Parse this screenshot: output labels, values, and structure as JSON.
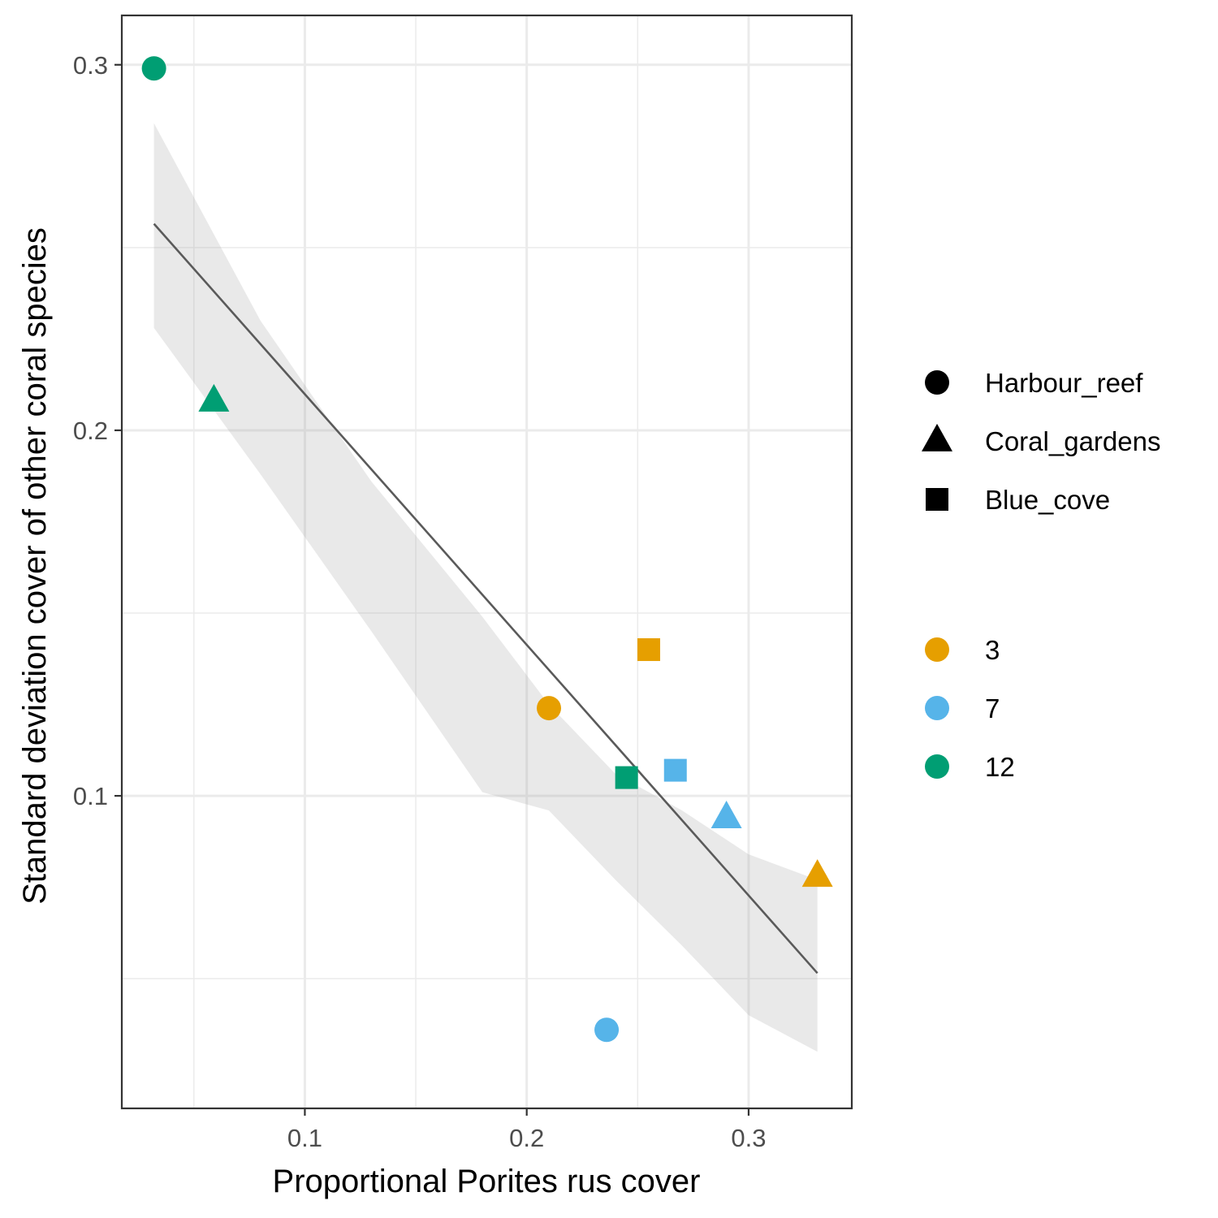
{
  "chart_data": {
    "type": "scatter",
    "title": "",
    "xlabel": "Proportional Porites rus cover",
    "ylabel": "Standard deviation cover of other coral species",
    "xlim": [
      0.0175,
      0.3465
    ],
    "ylim": [
      0.0145,
      0.3135
    ],
    "x_ticks": [
      0.1,
      0.2,
      0.3
    ],
    "x_tick_labels": [
      "0.1",
      "0.2",
      "0.3"
    ],
    "x_minor_ticks": [
      0.05,
      0.15,
      0.25
    ],
    "y_ticks": [
      0.1,
      0.2,
      0.3
    ],
    "y_tick_labels": [
      "0.1",
      "0.2",
      "0.3"
    ],
    "y_minor_ticks": [
      0.05,
      0.15,
      0.25
    ],
    "grid": true,
    "points": [
      {
        "x": 0.032,
        "y": 0.299,
        "site": "Harbour_reef",
        "group": "12"
      },
      {
        "x": 0.059,
        "y": 0.208,
        "site": "Coral_gardens",
        "group": "12"
      },
      {
        "x": 0.21,
        "y": 0.124,
        "site": "Harbour_reef",
        "group": "3"
      },
      {
        "x": 0.255,
        "y": 0.14,
        "site": "Blue_cove",
        "group": "3"
      },
      {
        "x": 0.245,
        "y": 0.105,
        "site": "Blue_cove",
        "group": "12"
      },
      {
        "x": 0.267,
        "y": 0.107,
        "site": "Blue_cove",
        "group": "7"
      },
      {
        "x": 0.29,
        "y": 0.094,
        "site": "Coral_gardens",
        "group": "7"
      },
      {
        "x": 0.331,
        "y": 0.078,
        "site": "Coral_gardens",
        "group": "3"
      },
      {
        "x": 0.236,
        "y": 0.036,
        "site": "Harbour_reef",
        "group": "7"
      }
    ],
    "fit_line": {
      "x": [
        0.032,
        0.331
      ],
      "y": [
        0.2565,
        0.0515
      ]
    },
    "confidence_band": {
      "x": [
        0.032,
        0.08,
        0.13,
        0.18,
        0.21,
        0.24,
        0.27,
        0.3,
        0.331
      ],
      "lower": [
        0.228,
        0.188,
        0.145,
        0.101,
        0.096,
        0.077,
        0.059,
        0.04,
        0.03
      ],
      "upper": [
        0.284,
        0.23,
        0.186,
        0.149,
        0.125,
        0.106,
        0.096,
        0.084,
        0.077
      ]
    },
    "legend_position": "right",
    "shape_legend": [
      {
        "label": "Harbour_reef",
        "shape": "circle"
      },
      {
        "label": "Coral_gardens",
        "shape": "triangle"
      },
      {
        "label": "Blue_cove",
        "shape": "square"
      }
    ],
    "color_legend": [
      {
        "label": "3",
        "color": "#E69F00"
      },
      {
        "label": "7",
        "color": "#56B4E9"
      },
      {
        "label": "12",
        "color": "#009E73"
      }
    ]
  }
}
